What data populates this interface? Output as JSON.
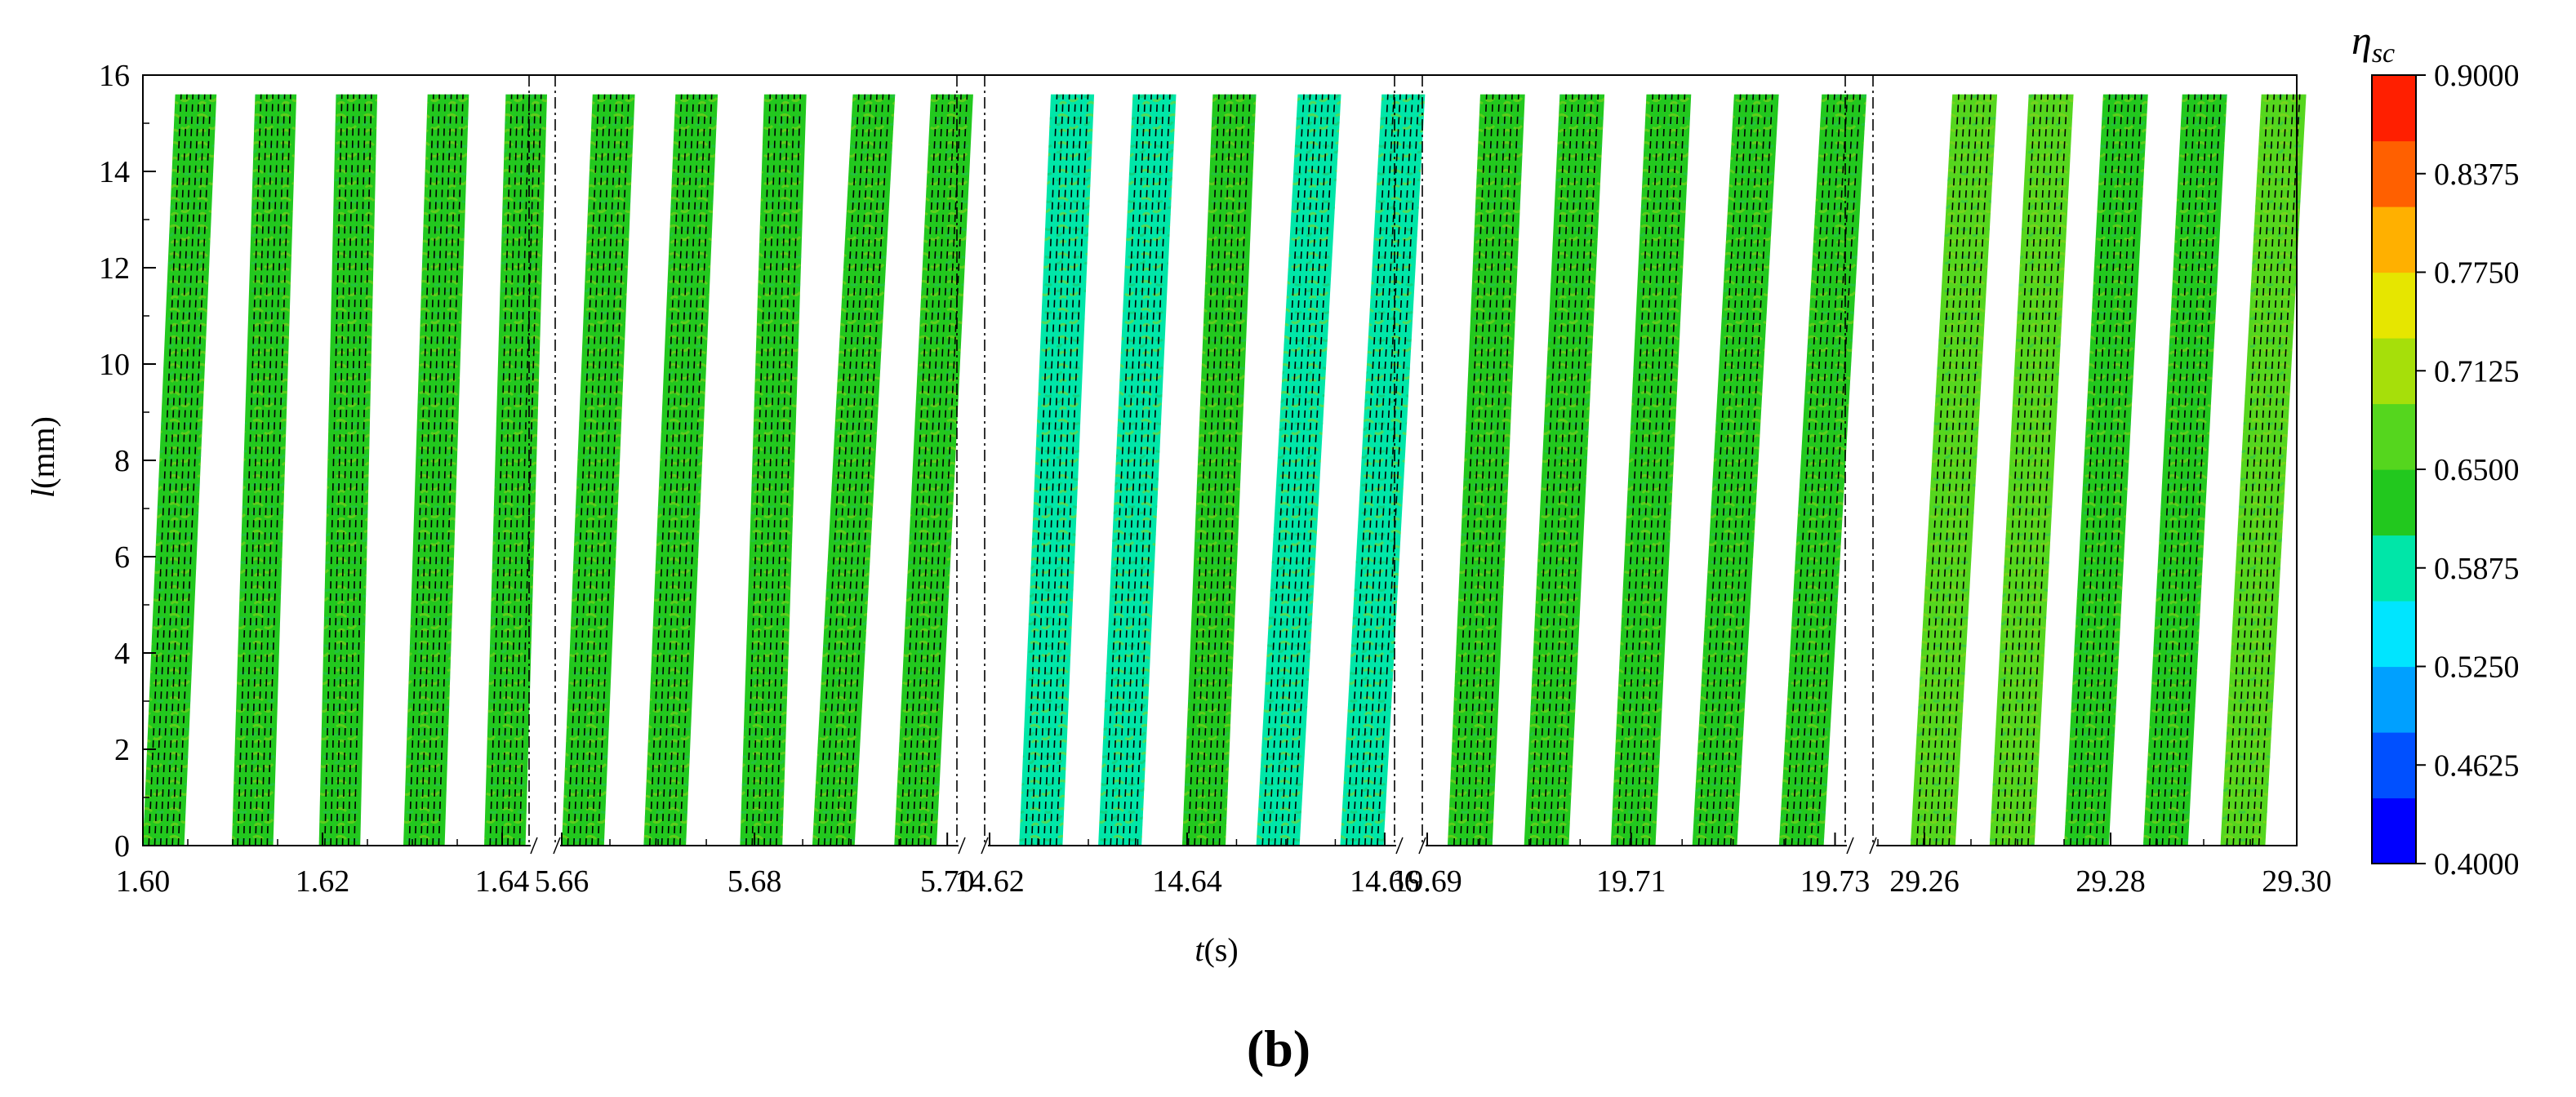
{
  "chart_data": {
    "type": "heatmap",
    "title": "",
    "panel_label": "(b)",
    "xlabel": {
      "var": "t",
      "unit": "(s)"
    },
    "ylabel": {
      "var": "l",
      "unit": "(mm)"
    },
    "ylim": [
      0,
      16
    ],
    "y_ticks": [
      "0",
      "2",
      "4",
      "6",
      "8",
      "10",
      "12",
      "14",
      "16"
    ],
    "colorbar": {
      "title_symbol": "η",
      "title_subscript": "sc",
      "range": [
        0.4,
        0.9
      ],
      "ticks": [
        "0.9000",
        "0.8375",
        "0.7750",
        "0.7125",
        "0.6500",
        "0.5875",
        "0.5250",
        "0.4625",
        "0.4000"
      ],
      "colors": [
        "#0000ff",
        "#0050ff",
        "#00a0ff",
        "#00e5ff",
        "#00e6a8",
        "#22c81e",
        "#55d61e",
        "#a6df0a",
        "#e6e600",
        "#ffb000",
        "#ff6000",
        "#ff1f00"
      ]
    },
    "segments": [
      {
        "x_ticks": [
          "1.60",
          "1.62",
          "1.64"
        ],
        "xlim": [
          1.6,
          1.643
        ],
        "stripes": [
          {
            "x_bottom": 1.6,
            "x_top": 1.6036,
            "mean_eta": 0.64
          },
          {
            "x_bottom": 1.6099,
            "x_top": 1.6125,
            "mean_eta": 0.63
          },
          {
            "x_bottom": 1.6196,
            "x_top": 1.6215,
            "mean_eta": 0.63
          },
          {
            "x_bottom": 1.629,
            "x_top": 1.6317,
            "mean_eta": 0.63
          },
          {
            "x_bottom": 1.638,
            "x_top": 1.6404,
            "mean_eta": 0.62
          }
        ]
      },
      {
        "x_ticks": [
          "5.66",
          "5.68",
          "5.70"
        ],
        "xlim": [
          5.66,
          5.701
        ],
        "stripes": [
          {
            "x_bottom": 5.66,
            "x_top": 5.6632,
            "mean_eta": 0.64
          },
          {
            "x_bottom": 5.6685,
            "x_top": 5.6718,
            "mean_eta": 0.62
          },
          {
            "x_bottom": 5.6785,
            "x_top": 5.681,
            "mean_eta": 0.63
          },
          {
            "x_bottom": 5.686,
            "x_top": 5.6902,
            "mean_eta": 0.63
          },
          {
            "x_bottom": 5.6945,
            "x_top": 5.6983,
            "mean_eta": 0.64
          }
        ]
      },
      {
        "x_ticks": [
          "14.62",
          "14.64",
          "14.66"
        ],
        "xlim": [
          14.62,
          14.661
        ],
        "stripes": [
          {
            "x_bottom": 14.623,
            "x_top": 14.6262,
            "mean_eta": 0.6
          },
          {
            "x_bottom": 14.631,
            "x_top": 14.6345,
            "mean_eta": 0.6
          },
          {
            "x_bottom": 14.6395,
            "x_top": 14.6426,
            "mean_eta": 0.61
          },
          {
            "x_bottom": 14.647,
            "x_top": 14.6512,
            "mean_eta": 0.58
          },
          {
            "x_bottom": 14.6555,
            "x_top": 14.6597,
            "mean_eta": 0.59
          }
        ]
      },
      {
        "x_ticks": [
          "19.69",
          "19.71",
          "19.73"
        ],
        "xlim": [
          19.69,
          19.731
        ],
        "stripes": [
          {
            "x_bottom": 19.692,
            "x_top": 19.6952,
            "mean_eta": 0.62
          },
          {
            "x_bottom": 19.6995,
            "x_top": 19.703,
            "mean_eta": 0.61
          },
          {
            "x_bottom": 19.708,
            "x_top": 19.7115,
            "mean_eta": 0.63
          },
          {
            "x_bottom": 19.716,
            "x_top": 19.7201,
            "mean_eta": 0.62
          },
          {
            "x_bottom": 19.7245,
            "x_top": 19.7287,
            "mean_eta": 0.63
          }
        ]
      },
      {
        "x_ticks": [
          "29.26",
          "29.28",
          "29.30"
        ],
        "xlim": [
          29.255,
          29.3
        ],
        "stripes": [
          {
            "x_bottom": 29.2585,
            "x_top": 29.263,
            "mean_eta": 0.65
          },
          {
            "x_bottom": 29.267,
            "x_top": 29.2712,
            "mean_eta": 0.65
          },
          {
            "x_bottom": 29.275,
            "x_top": 29.2792,
            "mean_eta": 0.64
          },
          {
            "x_bottom": 29.2835,
            "x_top": 29.2877,
            "mean_eta": 0.64
          },
          {
            "x_bottom": 29.2918,
            "x_top": 29.2962,
            "mean_eta": 0.65
          }
        ]
      }
    ]
  }
}
